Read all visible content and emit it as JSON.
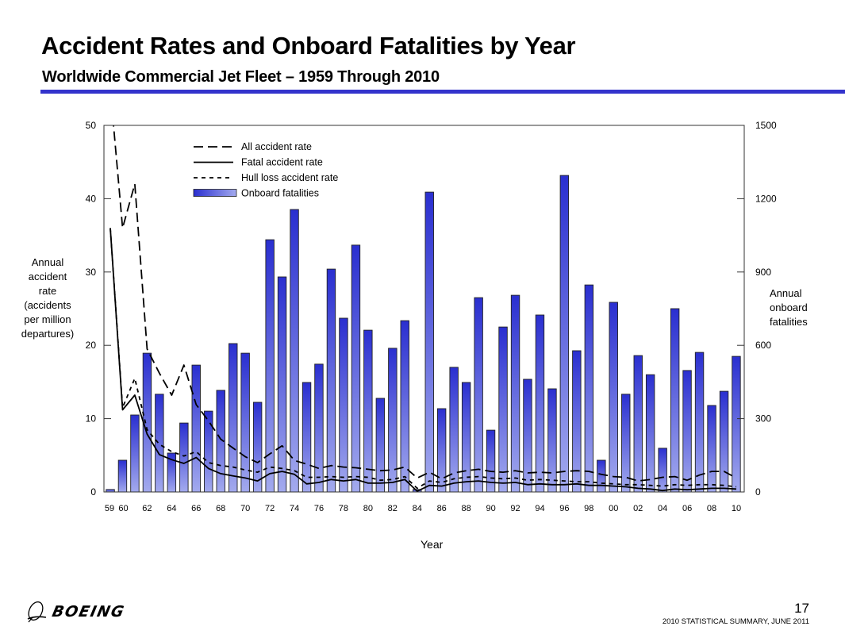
{
  "header": {
    "title": "Accident Rates and Onboard Fatalities by Year",
    "subtitle": "Worldwide Commercial Jet Fleet – 1959 Through 2010",
    "rule_color": "#3333cc"
  },
  "footer": {
    "logo_text": "BOEING",
    "page_number": "17",
    "note": "2010 STATISTICAL SUMMARY, JUNE 2011"
  },
  "chart_data": {
    "type": "bar",
    "title": "Accident Rates and Onboard Fatalities by Year",
    "subtitle": "Worldwide Commercial Jet Fleet – 1959 Through 2010",
    "xlabel": "Year",
    "ylabel": "Annual accident rate (accidents per million departures)",
    "ylabel_lines": [
      "Annual",
      "accident",
      "rate",
      "(accidents",
      "per million",
      "departures)"
    ],
    "y2label": "Annual onboard fatalities",
    "y2label_lines": [
      "Annual",
      "onboard",
      "fatalities"
    ],
    "ylim": [
      0,
      50
    ],
    "y2lim": [
      0,
      1500
    ],
    "yticks": [
      0,
      10,
      20,
      30,
      40,
      50
    ],
    "y2ticks": [
      0,
      300,
      600,
      900,
      1200,
      1500
    ],
    "grid": false,
    "legend_position": "top-left",
    "x": [
      1959,
      1960,
      1961,
      1962,
      1963,
      1964,
      1965,
      1966,
      1967,
      1968,
      1969,
      1970,
      1971,
      1972,
      1973,
      1974,
      1975,
      1976,
      1977,
      1978,
      1979,
      1980,
      1981,
      1982,
      1983,
      1984,
      1985,
      1986,
      1987,
      1988,
      1989,
      1990,
      1991,
      1992,
      1993,
      1994,
      1995,
      1996,
      1997,
      1998,
      1999,
      2000,
      2001,
      2002,
      2003,
      2004,
      2005,
      2006,
      2007,
      2008,
      2009,
      2010
    ],
    "xtick_labels": [
      "59",
      "60",
      "62",
      "64",
      "66",
      "68",
      "70",
      "72",
      "74",
      "76",
      "78",
      "80",
      "82",
      "84",
      "86",
      "88",
      "90",
      "92",
      "94",
      "96",
      "98",
      "00",
      "02",
      "04",
      "06",
      "08",
      "10"
    ],
    "xtick_years": [
      1959,
      1960,
      1962,
      1964,
      1966,
      1968,
      1970,
      1972,
      1974,
      1976,
      1978,
      1980,
      1982,
      1984,
      1986,
      1988,
      1990,
      1992,
      1994,
      1996,
      1998,
      2000,
      2002,
      2004,
      2006,
      2008,
      2010
    ],
    "series": [
      {
        "name": "Onboard fatalities",
        "type": "bar",
        "axis": "right",
        "color_top": "#2a2fd0",
        "color_bottom": "#a3aaee",
        "values": [
          10,
          130,
          315,
          568,
          400,
          159,
          282,
          519,
          331,
          416,
          607,
          568,
          367,
          1032,
          880,
          1156,
          448,
          523,
          912,
          711,
          1010,
          662,
          383,
          588,
          701,
          10,
          1227,
          341,
          510,
          448,
          795,
          253,
          675,
          805,
          461,
          724,
          422,
          1295,
          578,
          847,
          130,
          776,
          400,
          558,
          480,
          179,
          750,
          497,
          571,
          354,
          412,
          555
        ]
      },
      {
        "name": "All accident rate",
        "type": "line",
        "style": "long-dash",
        "axis": "left",
        "values": [
          55,
          36,
          42,
          19.5,
          16.2,
          13.2,
          17.3,
          11.9,
          9.7,
          7.2,
          6.0,
          4.8,
          4.0,
          5.2,
          6.3,
          4.3,
          3.8,
          3.2,
          3.6,
          3.4,
          3.3,
          3.1,
          2.9,
          3.0,
          3.4,
          1.9,
          2.7,
          1.8,
          2.6,
          2.9,
          3.1,
          2.8,
          2.7,
          2.9,
          2.6,
          2.7,
          2.6,
          2.8,
          2.9,
          2.8,
          2.4,
          2.1,
          2.0,
          1.5,
          1.7,
          2.0,
          2.1,
          1.6,
          2.3,
          2.8,
          2.8,
          1.9
        ]
      },
      {
        "name": "Fatal accident rate",
        "type": "line",
        "style": "solid",
        "axis": "left",
        "values": [
          36,
          11.2,
          13.2,
          7.9,
          5.1,
          4.4,
          3.9,
          4.7,
          3.2,
          2.5,
          2.2,
          1.9,
          1.5,
          2.5,
          2.8,
          2.4,
          1.1,
          1.3,
          1.7,
          1.5,
          1.7,
          1.2,
          1.2,
          1.3,
          1.7,
          0.1,
          0.9,
          0.8,
          1.2,
          1.4,
          1.5,
          1.3,
          1.2,
          1.3,
          1.0,
          1.1,
          1.0,
          1.0,
          1.1,
          0.9,
          0.9,
          0.8,
          0.7,
          0.5,
          0.4,
          0.2,
          0.4,
          0.3,
          0.4,
          0.5,
          0.5,
          0.4
        ]
      },
      {
        "name": "Hull loss accident rate",
        "type": "line",
        "style": "short-dash",
        "axis": "left",
        "values": [
          36,
          11.5,
          15.5,
          8.5,
          6.5,
          5.5,
          4.9,
          5.5,
          4.0,
          3.6,
          3.4,
          3.0,
          2.7,
          3.4,
          3.2,
          2.9,
          2.0,
          2.0,
          2.1,
          2.0,
          2.1,
          2.0,
          1.6,
          1.7,
          2.1,
          0.5,
          1.5,
          1.3,
          1.8,
          2.0,
          2.1,
          1.9,
          1.8,
          1.9,
          1.6,
          1.7,
          1.6,
          1.5,
          1.4,
          1.4,
          1.2,
          1.1,
          1.0,
          1.0,
          0.9,
          0.8,
          1.0,
          0.9,
          1.0,
          1.0,
          0.9,
          0.7
        ]
      }
    ],
    "legend": [
      "All accident rate",
      "Fatal accident rate",
      "Hull loss accident rate",
      "Onboard fatalities"
    ]
  }
}
